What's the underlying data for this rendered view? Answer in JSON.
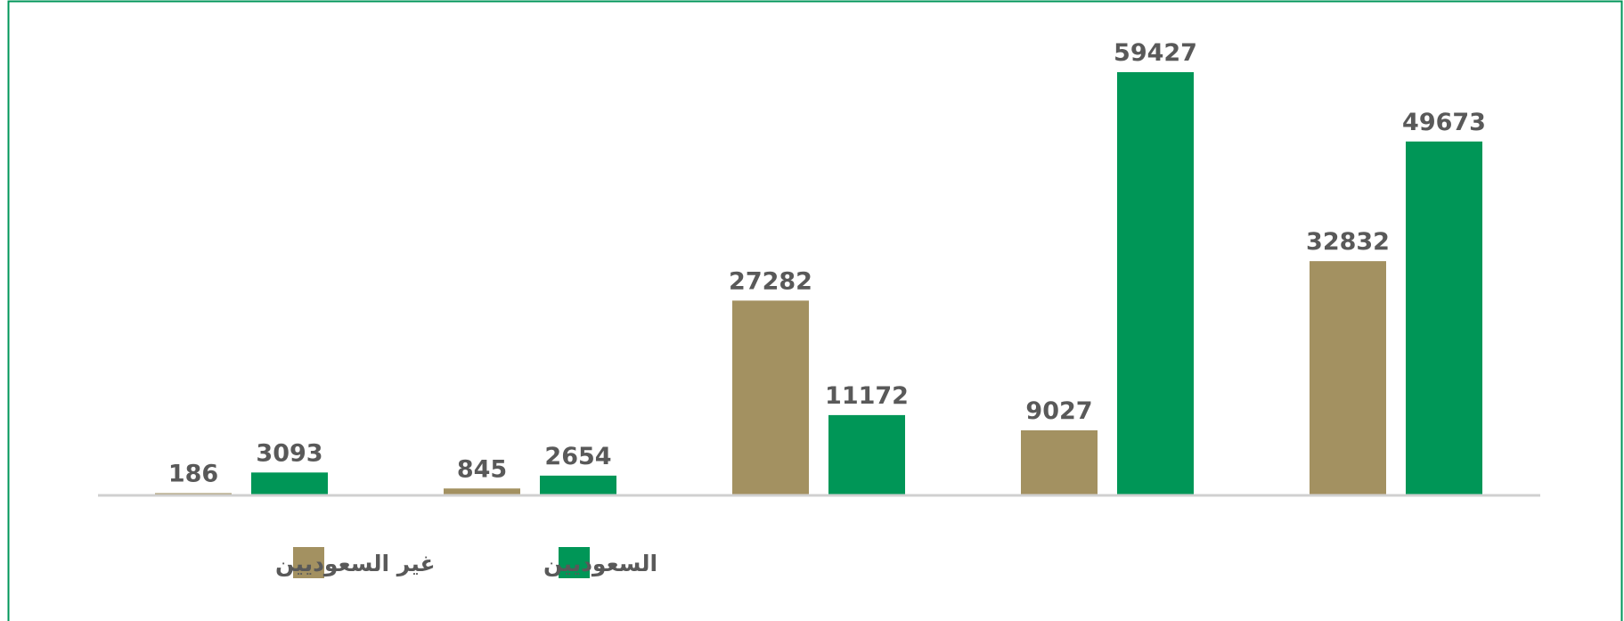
{
  "chart_data": {
    "type": "bar",
    "categories": [
      null,
      null,
      null,
      null,
      null
    ],
    "series": [
      {
        "name": "غير السعوديين",
        "color": "#a39161",
        "values": [
          186,
          845,
          27282,
          9027,
          32832
        ]
      },
      {
        "name": "السعوديين",
        "color": "#009657",
        "values": [
          3093,
          2654,
          11172,
          59427,
          49673
        ]
      }
    ],
    "grid": false
  }
}
